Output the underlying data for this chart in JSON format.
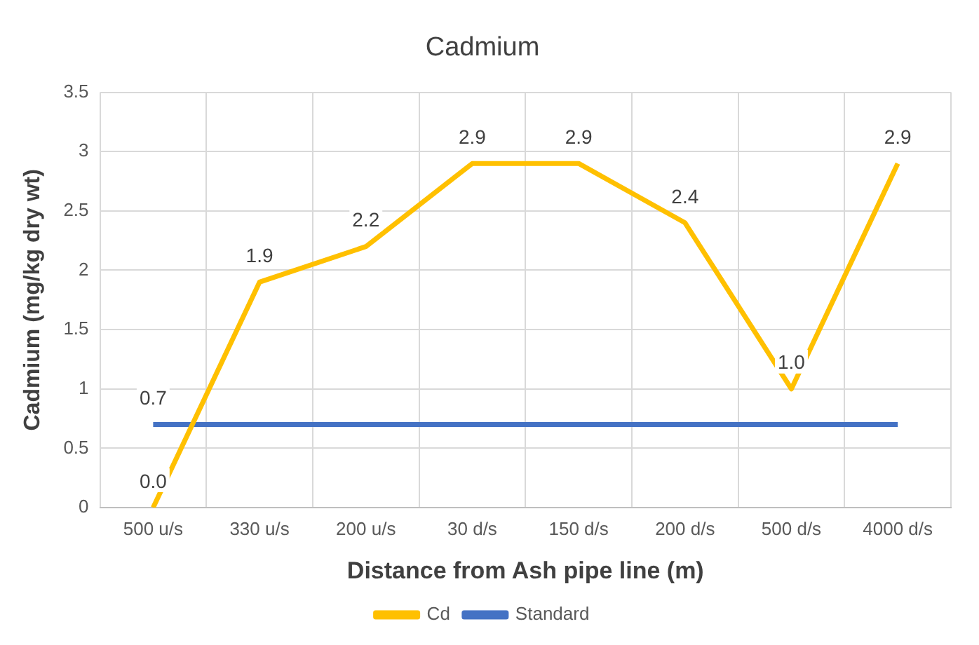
{
  "chart_data": {
    "type": "line",
    "title": "Cadmium",
    "xlabel": "Distance from Ash pipe line (m)",
    "ylabel": "Cadmium (mg/kg dry wt)",
    "categories": [
      "500 u/s",
      "330 u/s",
      "200 u/s",
      "30 d/s",
      "150 d/s",
      "200 d/s",
      "500 d/s",
      "4000 d/s"
    ],
    "series": [
      {
        "name": "Cd",
        "color": "#ffc000",
        "values": [
          0.0,
          1.9,
          2.2,
          2.9,
          2.9,
          2.4,
          1.0,
          2.9
        ],
        "value_labels": [
          "0.0",
          "1.9",
          "2.2",
          "2.9",
          "2.9",
          "2.4",
          "1.0",
          "2.9"
        ]
      },
      {
        "name": "Standard",
        "color": "#4472c4",
        "values": [
          0.7,
          0.7,
          0.7,
          0.7,
          0.7,
          0.7,
          0.7,
          0.7
        ],
        "value_labels": [
          "0.7",
          null,
          null,
          null,
          null,
          null,
          null,
          null
        ]
      }
    ],
    "ylim": [
      0,
      3.5
    ],
    "yticks": [
      0,
      0.5,
      1,
      1.5,
      2,
      2.5,
      3,
      3.5
    ],
    "grid": true,
    "legend": "bottom",
    "marker": "none",
    "line_style": "solid"
  }
}
